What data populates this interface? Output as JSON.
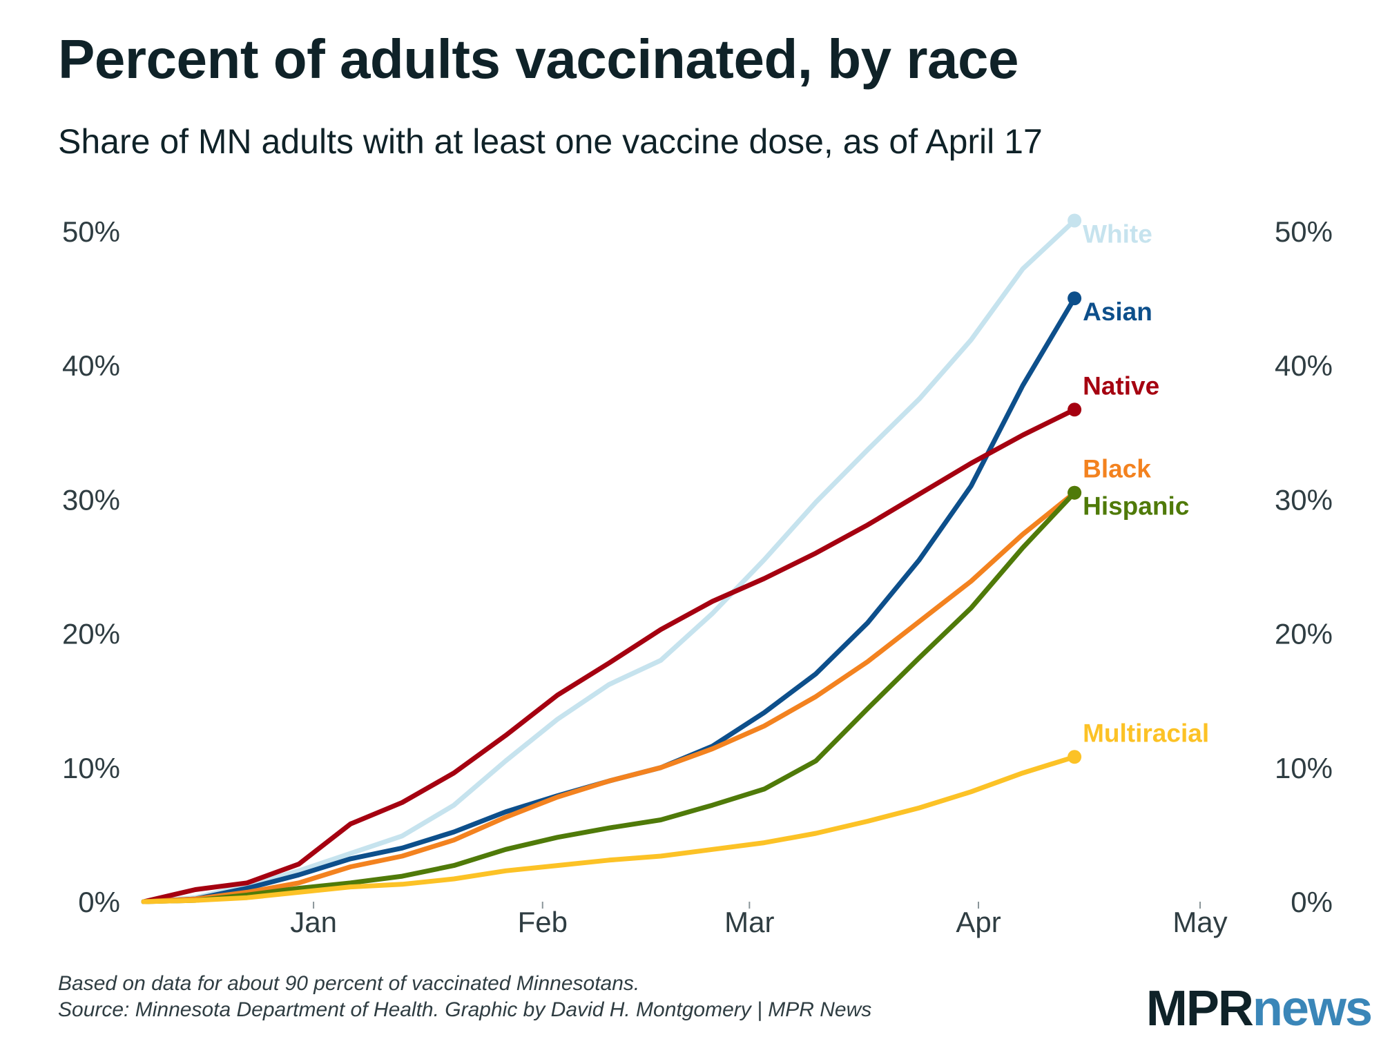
{
  "title": "Percent of adults vaccinated, by race",
  "subtitle": "Share of MN adults with at least one vaccine dose, as of April 17",
  "footnote": "Based on data for about 90 percent of vaccinated Minnesotans.",
  "source": "Source: Minnesota Department of Health. Graphic by David H. Montgomery | MPR News",
  "logo": {
    "part1": "MPR",
    "part2": "news"
  },
  "chart_data": {
    "type": "line",
    "title": "Percent of adults vaccinated, by race",
    "subtitle": "Share of MN adults with at least one vaccine dose, as of April 17",
    "xlabel": "",
    "ylabel": "",
    "x_type": "date",
    "xlim": [
      "2020-12-09",
      "2021-05-01"
    ],
    "ylim": [
      0,
      50
    ],
    "x_ticks": [
      {
        "date": "2021-01-01",
        "label": "Jan"
      },
      {
        "date": "2021-02-01",
        "label": "Feb"
      },
      {
        "date": "2021-03-01",
        "label": "Mar"
      },
      {
        "date": "2021-04-01",
        "label": "Apr"
      },
      {
        "date": "2021-05-01",
        "label": "May"
      }
    ],
    "y_ticks": [
      0,
      10,
      20,
      30,
      40,
      50
    ],
    "y_tick_labels": [
      "0%",
      "10%",
      "20%",
      "30%",
      "40%",
      "50%"
    ],
    "y_axis_both_sides": true,
    "grid": false,
    "legend": "direct labels at line ends",
    "x": [
      "2020-12-09",
      "2020-12-16",
      "2020-12-23",
      "2020-12-30",
      "2021-01-06",
      "2021-01-13",
      "2021-01-20",
      "2021-01-27",
      "2021-02-03",
      "2021-02-10",
      "2021-02-17",
      "2021-02-24",
      "2021-03-03",
      "2021-03-10",
      "2021-03-17",
      "2021-03-24",
      "2021-03-31",
      "2021-04-07",
      "2021-04-14"
    ],
    "series": [
      {
        "name": "White",
        "color": "#c6e3ee",
        "end_marker": true,
        "values": [
          0,
          0.3,
          1.2,
          2.3,
          3.6,
          4.9,
          7.2,
          10.5,
          13.6,
          16.2,
          18.0,
          21.5,
          25.5,
          29.8,
          33.7,
          37.5,
          41.9,
          47.2,
          50.8
        ]
      },
      {
        "name": "Asian",
        "color": "#0d4f8b",
        "end_marker": true,
        "values": [
          0,
          0.2,
          1.0,
          2.0,
          3.2,
          4.0,
          5.2,
          6.7,
          7.9,
          9.0,
          10.0,
          11.6,
          14.1,
          17.0,
          20.8,
          25.5,
          31.0,
          38.5,
          45.0
        ]
      },
      {
        "name": "Native",
        "color": "#a50010",
        "end_marker": true,
        "values": [
          0,
          0.9,
          1.4,
          2.8,
          5.8,
          7.4,
          9.6,
          12.4,
          15.4,
          17.8,
          20.3,
          22.4,
          24.1,
          26.0,
          28.1,
          30.4,
          32.7,
          34.8,
          36.7
        ]
      },
      {
        "name": "Black",
        "color": "#f3821f",
        "end_marker": true,
        "values": [
          0,
          0.2,
          0.7,
          1.4,
          2.6,
          3.4,
          4.6,
          6.3,
          7.8,
          9.0,
          10.0,
          11.4,
          13.1,
          15.3,
          17.9,
          20.9,
          23.9,
          27.4,
          30.5
        ]
      },
      {
        "name": "Hispanic",
        "color": "#4f7a09",
        "end_marker": true,
        "values": [
          0,
          0.1,
          0.5,
          1.0,
          1.4,
          1.9,
          2.7,
          3.9,
          4.8,
          5.5,
          6.1,
          7.2,
          8.4,
          10.5,
          14.4,
          18.2,
          21.9,
          26.4,
          30.5
        ]
      },
      {
        "name": "Multiracial",
        "color": "#fcc226",
        "end_marker": true,
        "values": [
          0,
          0.1,
          0.3,
          0.7,
          1.1,
          1.3,
          1.7,
          2.3,
          2.7,
          3.1,
          3.4,
          3.9,
          4.4,
          5.1,
          6.0,
          7.0,
          8.2,
          9.6,
          10.8
        ]
      }
    ]
  }
}
